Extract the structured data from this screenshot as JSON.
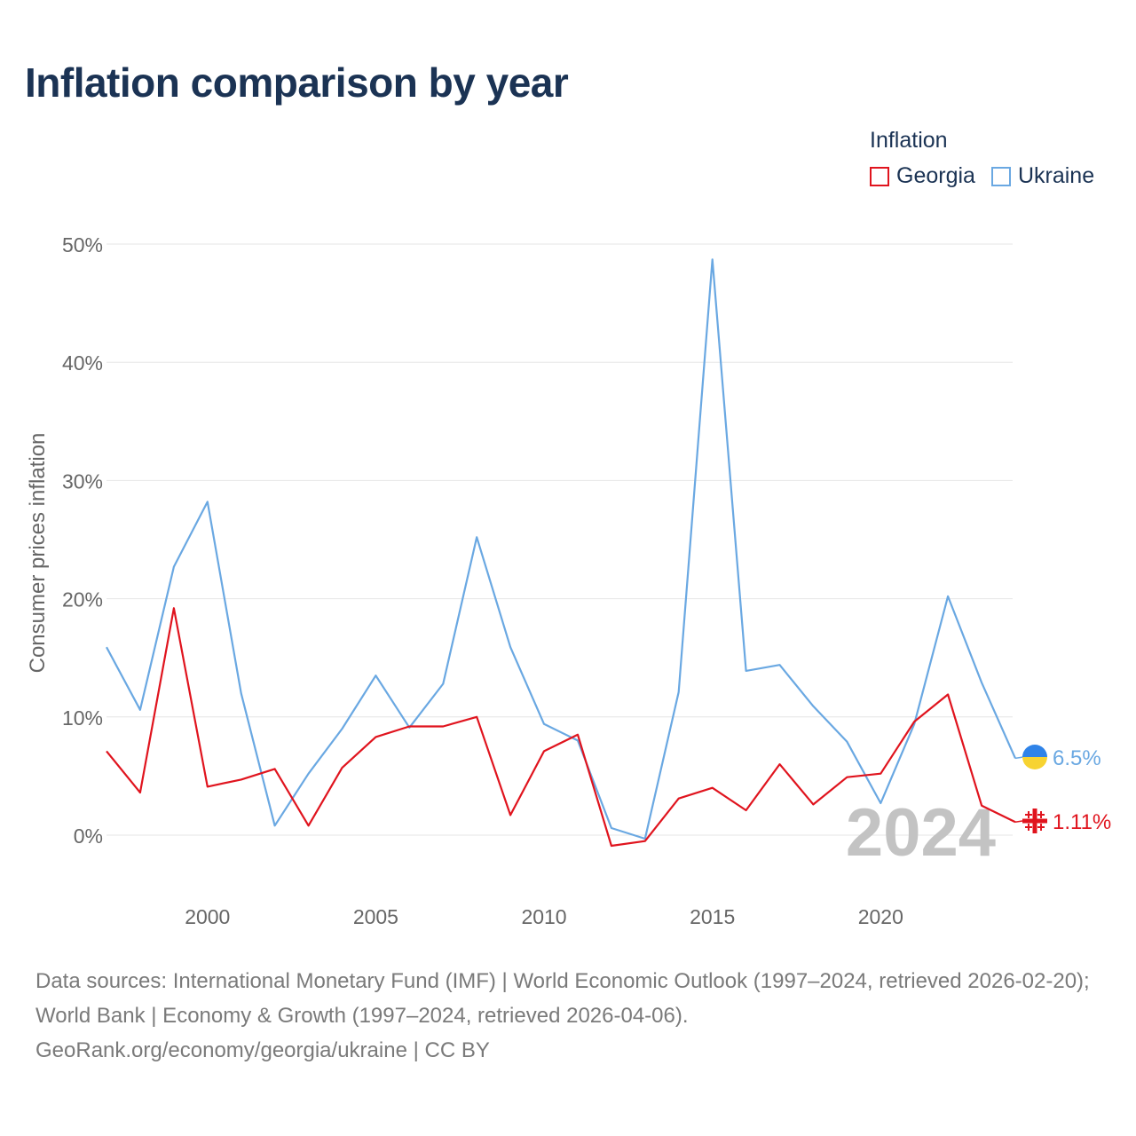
{
  "title": "Inflation comparison by year",
  "legend": {
    "title": "Inflation",
    "items": [
      {
        "label": "Georgia",
        "color": "#e0141e"
      },
      {
        "label": "Ukraine",
        "color": "#6aa8e2"
      }
    ]
  },
  "chart_data": {
    "type": "line",
    "ylabel": "Consumer prices inflation",
    "xlabel": "",
    "x": [
      1997,
      1998,
      1999,
      2000,
      2001,
      2002,
      2003,
      2004,
      2005,
      2006,
      2007,
      2008,
      2009,
      2010,
      2011,
      2012,
      2013,
      2014,
      2015,
      2016,
      2017,
      2018,
      2019,
      2020,
      2021,
      2022,
      2023,
      2024
    ],
    "xticks": [
      "2000",
      "2005",
      "2010",
      "2015",
      "2020"
    ],
    "yticks": [
      "0%",
      "10%",
      "20%",
      "30%",
      "40%",
      "50%"
    ],
    "ylim": [
      0,
      50
    ],
    "series": [
      {
        "name": "Georgia",
        "color": "#e0141e",
        "end_label": "1.11%",
        "values": [
          7.1,
          3.6,
          19.2,
          4.1,
          4.7,
          5.6,
          0.8,
          5.7,
          8.3,
          9.2,
          9.2,
          10.0,
          1.7,
          7.1,
          8.5,
          -0.9,
          -0.5,
          3.1,
          4.0,
          2.1,
          6.0,
          2.6,
          4.9,
          5.2,
          9.6,
          11.9,
          2.5,
          1.11
        ]
      },
      {
        "name": "Ukraine",
        "color": "#6aa8e2",
        "end_label": "6.5%",
        "values": [
          15.9,
          10.6,
          22.7,
          28.2,
          12.0,
          0.8,
          5.2,
          9.0,
          13.5,
          9.1,
          12.8,
          25.2,
          15.9,
          9.4,
          8.0,
          0.6,
          -0.3,
          12.1,
          48.7,
          13.9,
          14.4,
          10.9,
          7.9,
          2.7,
          9.4,
          20.2,
          12.9,
          6.5
        ]
      }
    ],
    "year_watermark": "2024"
  },
  "footer": {
    "line1": "Data sources: International Monetary Fund (IMF) | World Economic Outlook (1997–2024, retrieved 2026-02-20); World Bank | Economy & Growth (1997–2024, retrieved 2026-04-06).",
    "line2": "GeoRank.org/economy/georgia/ukraine | CC BY"
  }
}
